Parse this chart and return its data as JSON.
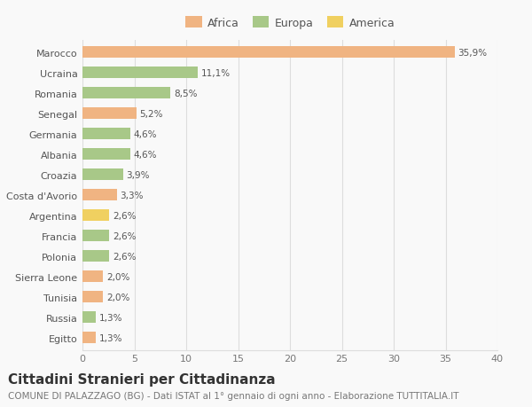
{
  "countries": [
    "Marocco",
    "Ucraina",
    "Romania",
    "Senegal",
    "Germania",
    "Albania",
    "Croazia",
    "Costa d'Avorio",
    "Argentina",
    "Francia",
    "Polonia",
    "Sierra Leone",
    "Tunisia",
    "Russia",
    "Egitto"
  ],
  "values": [
    35.9,
    11.1,
    8.5,
    5.2,
    4.6,
    4.6,
    3.9,
    3.3,
    2.6,
    2.6,
    2.6,
    2.0,
    2.0,
    1.3,
    1.3
  ],
  "labels": [
    "35,9%",
    "11,1%",
    "8,5%",
    "5,2%",
    "4,6%",
    "4,6%",
    "3,9%",
    "3,3%",
    "2,6%",
    "2,6%",
    "2,6%",
    "2,0%",
    "2,0%",
    "1,3%",
    "1,3%"
  ],
  "colors": [
    "#f0b482",
    "#a8c888",
    "#a8c888",
    "#f0b482",
    "#a8c888",
    "#a8c888",
    "#a8c888",
    "#f0b482",
    "#f0d060",
    "#a8c888",
    "#a8c888",
    "#f0b482",
    "#f0b482",
    "#a8c888",
    "#f0b482"
  ],
  "legend_labels": [
    "Africa",
    "Europa",
    "America"
  ],
  "legend_colors": [
    "#f0b482",
    "#a8c888",
    "#f0d060"
  ],
  "title": "Cittadini Stranieri per Cittadinanza",
  "subtitle": "COMUNE DI PALAZZAGO (BG) - Dati ISTAT al 1° gennaio di ogni anno - Elaborazione TUTTITALIA.IT",
  "xlim": [
    0,
    40
  ],
  "xticks": [
    0,
    5,
    10,
    15,
    20,
    25,
    30,
    35,
    40
  ],
  "bg_color": "#f9f9f9",
  "grid_color": "#dddddd",
  "bar_height": 0.55,
  "label_fontsize": 7.5,
  "tick_fontsize": 8,
  "title_fontsize": 11,
  "subtitle_fontsize": 7.5
}
